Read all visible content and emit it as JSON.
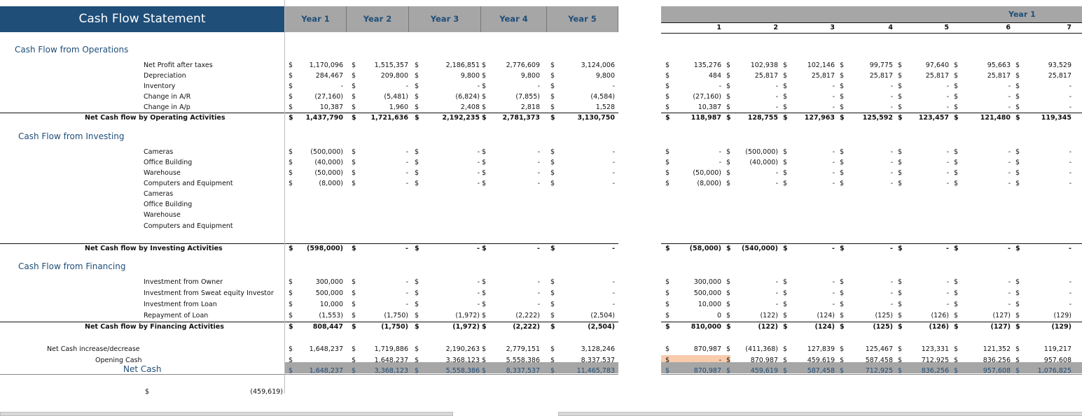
{
  "title": "Cash Flow Statement",
  "annual_headers": [
    "Year 1",
    "Year 2",
    "Year 3",
    "Year 4",
    "Year 5"
  ],
  "monthly_header": {
    "year": "Year 1",
    "months": [
      "1",
      "2",
      "3",
      "4",
      "5",
      "6",
      "7"
    ]
  },
  "currency": "$",
  "sections": {
    "operations": "Cash Flow from Operations",
    "investing": "Cash Flow from Investing",
    "financing": "Cash Flow from Financing"
  },
  "rows": [
    {
      "label": "Net Profit after taxes",
      "annual": [
        "1,170,096",
        "1,515,357",
        "2,186,851",
        "2,776,609",
        "3,124,006"
      ],
      "monthly": [
        "135,276",
        "102,938",
        "102,146",
        "99,775",
        "97,640",
        "95,663",
        "93,529"
      ]
    },
    {
      "label": "Depreciation",
      "annual": [
        "284,467",
        "209,800",
        "9,800",
        "9,800",
        "9,800"
      ],
      "monthly": [
        "484",
        "25,817",
        "25,817",
        "25,817",
        "25,817",
        "25,817",
        "25,817"
      ]
    },
    {
      "label": "Inventory",
      "annual": [
        "-",
        "-",
        "-",
        "-",
        "-"
      ],
      "monthly": [
        "-",
        "-",
        "-",
        "-",
        "-",
        "-",
        "-"
      ]
    },
    {
      "label": "Change in A/R",
      "annual": [
        "(27,160)",
        "(5,481)",
        "(6,824)",
        "(7,855)",
        "(4,584)"
      ],
      "monthly": [
        "(27,160)",
        "-",
        "-",
        "-",
        "-",
        "-",
        "-"
      ]
    },
    {
      "label": "Change in A/p",
      "annual": [
        "10,387",
        "1,960",
        "2,408",
        "2,818",
        "1,528"
      ],
      "monthly": [
        "10,387",
        "-",
        "-",
        "-",
        "-",
        "-",
        "-"
      ]
    },
    {
      "label": "Net Cash flow by Operating Activities",
      "total": true,
      "annual": [
        "1,437,790",
        "1,721,636",
        "2,192,235",
        "2,781,373",
        "3,130,750"
      ],
      "monthly": [
        "118,987",
        "128,755",
        "127,963",
        "125,592",
        "123,457",
        "121,480",
        "119,345"
      ]
    },
    {
      "label": "Cameras",
      "annual": [
        "(500,000)",
        "-",
        "-",
        "-",
        "-"
      ],
      "monthly": [
        "-",
        "(500,000)",
        "-",
        "-",
        "-",
        "-",
        "-"
      ]
    },
    {
      "label": "Office Building",
      "annual": [
        "(40,000)",
        "-",
        "-",
        "-",
        "-"
      ],
      "monthly": [
        "-",
        "(40,000)",
        "-",
        "-",
        "-",
        "-",
        "-"
      ]
    },
    {
      "label": "Warehouse",
      "annual": [
        "(50,000)",
        "-",
        "-",
        "-",
        "-"
      ],
      "monthly": [
        "(50,000)",
        "-",
        "-",
        "-",
        "-",
        "-",
        "-"
      ]
    },
    {
      "label": "Computers and Equipment",
      "annual": [
        "(8,000)",
        "-",
        "-",
        "-",
        "-"
      ],
      "monthly": [
        "(8,000)",
        "-",
        "-",
        "-",
        "-",
        "-",
        "-"
      ]
    },
    {
      "label": "Cameras"
    },
    {
      "label": "Office Building"
    },
    {
      "label": "Warehouse"
    },
    {
      "label": "Computers and Equipment"
    },
    {
      "label": "Net Cash flow by Investing Activities",
      "total": true,
      "annual": [
        "(598,000)",
        "-",
        "-",
        "-",
        "-"
      ],
      "monthly": [
        "(58,000)",
        "(540,000)",
        "-",
        "-",
        "-",
        "-",
        "-"
      ]
    },
    {
      "label": "Investment from Owner",
      "annual": [
        "300,000",
        "-",
        "-",
        "-",
        "-"
      ],
      "monthly": [
        "300,000",
        "-",
        "-",
        "-",
        "-",
        "-",
        "-"
      ]
    },
    {
      "label": "Investment from Sweat equity Investor",
      "annual": [
        "500,000",
        "-",
        "-",
        "-",
        "-"
      ],
      "monthly": [
        "500,000",
        "-",
        "-",
        "-",
        "-",
        "-",
        "-"
      ]
    },
    {
      "label": "Investment from Loan",
      "annual": [
        "10,000",
        "-",
        "-",
        "-",
        "-"
      ],
      "monthly": [
        "10,000",
        "-",
        "-",
        "-",
        "-",
        "-",
        "-"
      ]
    },
    {
      "label": "Repayment of Loan",
      "annual": [
        "(1,553)",
        "(1,750)",
        "(1,972)",
        "(2,222)",
        "(2,504)"
      ],
      "monthly": [
        "0",
        "(122)",
        "(124)",
        "(125)",
        "(126)",
        "(127)",
        "(129)"
      ]
    },
    {
      "label": "Net Cash flow by Financing Activities",
      "total": true,
      "annual": [
        "808,447",
        "(1,750)",
        "(1,972)",
        "(2,222)",
        "(2,504)"
      ],
      "monthly": [
        "810,000",
        "(122)",
        "(124)",
        "(125)",
        "(126)",
        "(127)",
        "(129)"
      ]
    },
    {
      "label": "Net Cash increase/decrease",
      "annual": [
        "1,648,237",
        "1,719,886",
        "2,190,263",
        "2,779,151",
        "3,128,246"
      ],
      "monthly": [
        "870,987",
        "(411,368)",
        "127,839",
        "125,467",
        "123,331",
        "121,352",
        "119,217"
      ]
    },
    {
      "label": "Opening Cash",
      "annual": [
        "",
        "1,648,237",
        "3,368,123",
        "5,558,386",
        "8,337,537"
      ],
      "monthly": [
        "-",
        "870,987",
        "459,619",
        "587,458",
        "712,925",
        "836,256",
        "957,608"
      ]
    },
    {
      "label": "Net Cash",
      "net": true,
      "annual": [
        "1,648,237",
        "3,368,123",
        "5,558,386",
        "8,337,537",
        "11,465,783"
      ],
      "monthly": [
        "870,987",
        "459,619",
        "587,458",
        "712,925",
        "836,256",
        "957,608",
        "1,076,825"
      ]
    }
  ],
  "footer": {
    "currency": "$",
    "value": "(459,619)"
  },
  "colors": {
    "title_bg": "#1f4e79",
    "header_bg": "#a6a6a6",
    "highlight": "#f8cbad"
  }
}
